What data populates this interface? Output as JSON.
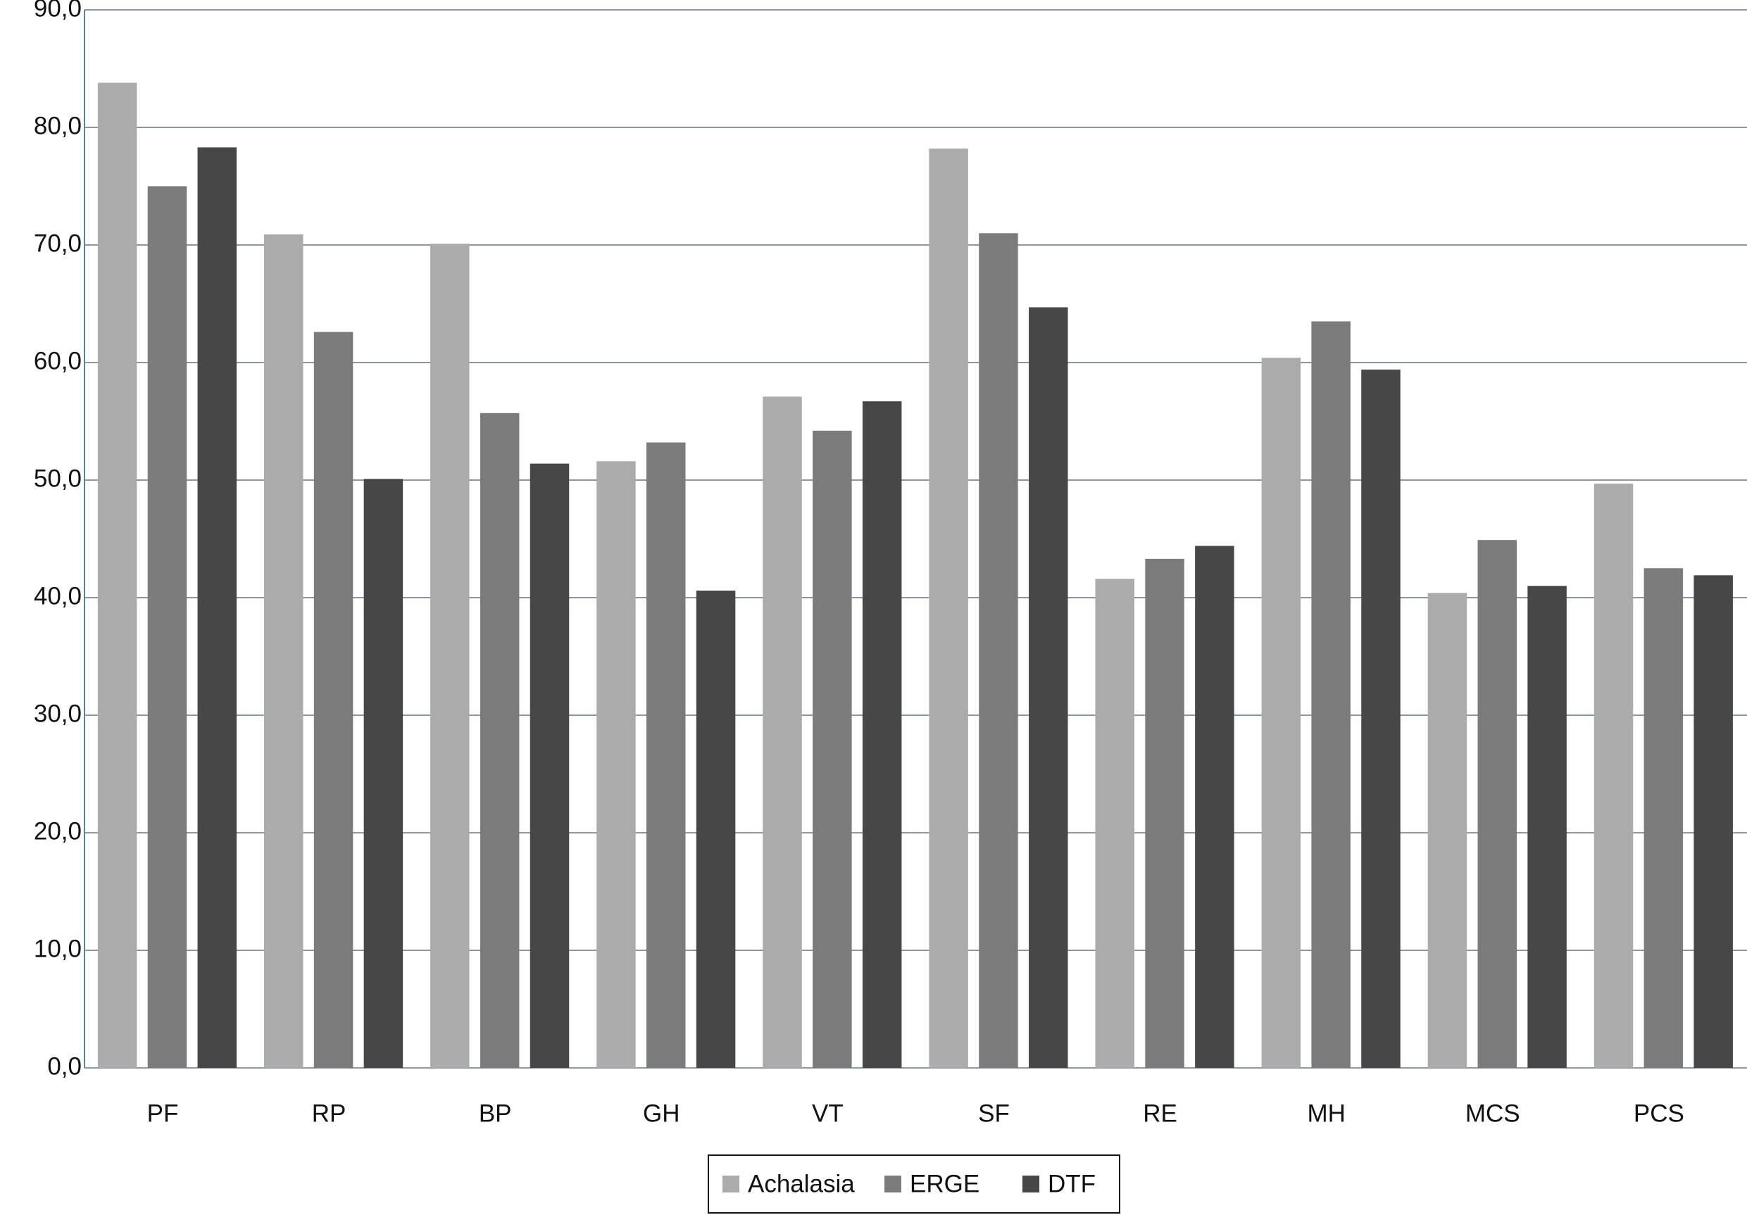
{
  "chart_data": {
    "type": "bar",
    "categories": [
      "PF",
      "RP",
      "BP",
      "GH",
      "VT",
      "SF",
      "RE",
      "MH",
      "MCS",
      "PCS"
    ],
    "series": [
      {
        "name": "Achalasia",
        "color": "#ababab",
        "values": [
          83.8,
          70.9,
          70.1,
          51.6,
          57.1,
          78.2,
          41.6,
          60.4,
          40.4,
          49.7
        ]
      },
      {
        "name": "ERGE",
        "color": "#7b7b7b",
        "values": [
          75.0,
          62.6,
          55.7,
          53.2,
          54.2,
          71.0,
          43.3,
          63.5,
          44.9,
          42.5
        ]
      },
      {
        "name": "DTF",
        "color": "#474747",
        "values": [
          78.3,
          50.1,
          51.4,
          40.6,
          56.7,
          64.7,
          44.4,
          59.4,
          41.0,
          41.9
        ]
      }
    ],
    "ylim": [
      0,
      90
    ],
    "yticks": [
      {
        "value": 0,
        "label": "0,0"
      },
      {
        "value": 10,
        "label": "10,0"
      },
      {
        "value": 20,
        "label": "20,0"
      },
      {
        "value": 30,
        "label": "30,0"
      },
      {
        "value": 40,
        "label": "40,0"
      },
      {
        "value": 50,
        "label": "50,0"
      },
      {
        "value": 60,
        "label": "60,0"
      },
      {
        "value": 70,
        "label": "70,0"
      },
      {
        "value": 80,
        "label": "80,0"
      },
      {
        "value": 90,
        "label": "90,0"
      }
    ],
    "grid": true,
    "legend": "bottom"
  }
}
